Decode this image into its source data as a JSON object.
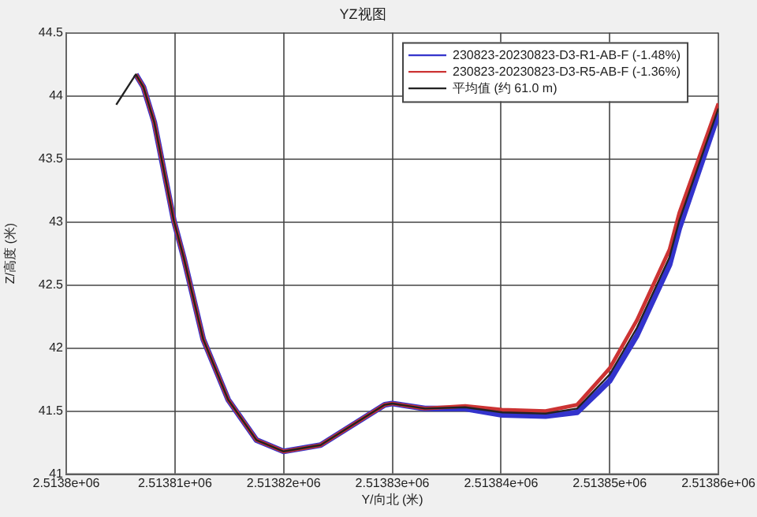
{
  "chart_data": {
    "type": "line",
    "title": "YZ视图",
    "xlabel": "Y/向北 (米)",
    "ylabel": "Z/高度 (米)",
    "xlim": [
      2513800,
      2513860
    ],
    "xticks": [
      {
        "value": 2513800,
        "label": "2.5138e+06"
      },
      {
        "value": 2513810,
        "label": "2.51381e+06"
      },
      {
        "value": 2513820,
        "label": "2.51382e+06"
      },
      {
        "value": 2513830,
        "label": "2.51383e+06"
      },
      {
        "value": 2513840,
        "label": "2.51384e+06"
      },
      {
        "value": 2513850,
        "label": "2.51385e+06"
      },
      {
        "value": 2513860,
        "label": "2.51386e+06"
      }
    ],
    "ylim": [
      41,
      44.5
    ],
    "yticks": [
      41,
      41.5,
      42,
      42.5,
      43,
      43.5,
      44,
      44.5
    ],
    "grid": true,
    "legend": "top right",
    "marker": "none",
    "line_style": "solid",
    "series": [
      {
        "name": "230823-20230823-D3-R1-AB-F (-1.48%)",
        "color": "#3333cc",
        "x": [
          2513806.4,
          2513807.1,
          2513808.1,
          2513809.9,
          2513810.8,
          2513812.6,
          2513814.9,
          2513817.5,
          2513820,
          2513823.4,
          2513829.3,
          2513830,
          2513833,
          2513836.7,
          2513840.1,
          2513844.1,
          2513847,
          2513850,
          2513852.5,
          2513855.5,
          2513856.4,
          2513860
        ],
        "values": [
          44.17,
          44.07,
          43.79,
          43.01,
          42.72,
          42.07,
          41.59,
          41.27,
          41.18,
          41.23,
          41.55,
          41.56,
          41.52,
          41.52,
          41.47,
          41.46,
          41.49,
          41.74,
          42.1,
          42.66,
          42.95,
          43.86
        ]
      },
      {
        "name": "230823-20230823-D3-R5-AB-F (-1.36%)",
        "color": "#cc3333",
        "x": [
          2513806.4,
          2513807.1,
          2513808.1,
          2513809.9,
          2513810.8,
          2513812.6,
          2513814.9,
          2513817.5,
          2513820,
          2513823.4,
          2513829.3,
          2513830,
          2513833,
          2513836.7,
          2513840.1,
          2513844.1,
          2513847,
          2513850,
          2513852.5,
          2513855.5,
          2513856.4,
          2513860
        ],
        "values": [
          44.17,
          44.07,
          43.79,
          43.01,
          42.72,
          42.07,
          41.59,
          41.27,
          41.18,
          41.23,
          41.55,
          41.56,
          41.52,
          41.54,
          41.51,
          41.5,
          41.55,
          41.84,
          42.22,
          42.78,
          43.07,
          43.94
        ]
      },
      {
        "name": "平均值 (约 61.0 m)",
        "color": "#222222",
        "x": [
          2513804.6,
          2513806.4,
          2513807.1,
          2513808.1,
          2513809.9,
          2513810.8,
          2513812.6,
          2513814.9,
          2513817.5,
          2513820,
          2513823.4,
          2513829.3,
          2513830,
          2513833,
          2513836.7,
          2513840.1,
          2513844.1,
          2513847,
          2513850,
          2513852.5,
          2513855.5,
          2513856.4,
          2513860
        ],
        "values": [
          43.93,
          44.17,
          44.07,
          43.79,
          43.01,
          42.72,
          42.07,
          41.59,
          41.27,
          41.18,
          41.23,
          41.55,
          41.56,
          41.52,
          41.53,
          41.49,
          41.48,
          41.52,
          41.79,
          42.16,
          42.72,
          43.01,
          43.9
        ]
      }
    ]
  }
}
